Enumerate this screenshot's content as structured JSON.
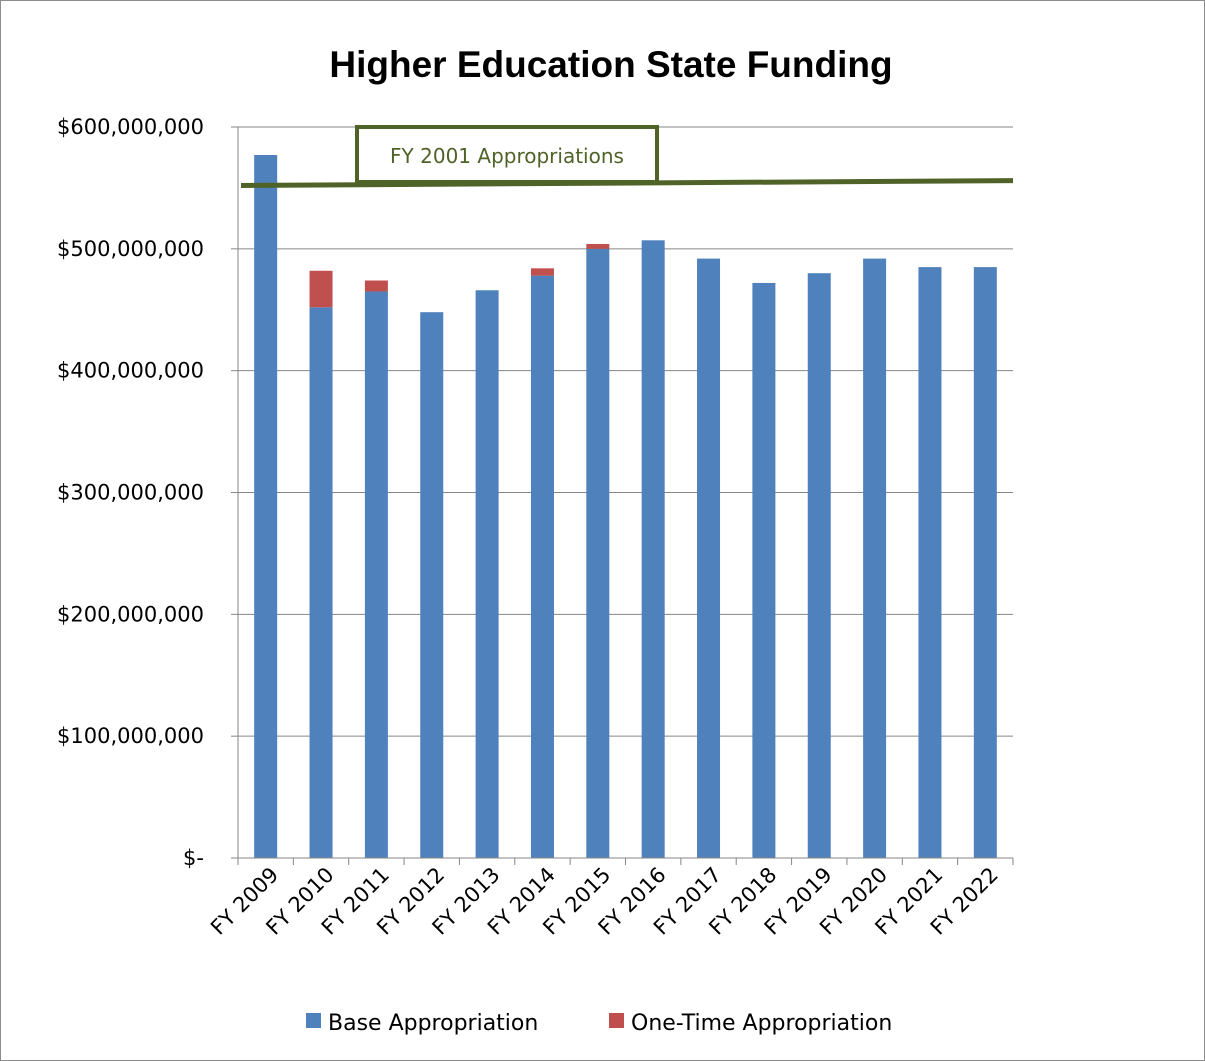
{
  "chart_data": {
    "type": "bar",
    "stacked": true,
    "title": "Higher Education State Funding",
    "xlabel": "",
    "ylabel": "",
    "categories": [
      "FY 2009",
      "FY 2010",
      "FY 2011",
      "FY 2012",
      "FY 2013",
      "FY 2014",
      "FY 2015",
      "FY 2016",
      "FY 2017",
      "FY 2018",
      "FY 2019",
      "FY 2020",
      "FY 2021",
      "FY 2022"
    ],
    "series": [
      {
        "name": "Base Appropriation",
        "color": "#4f81bd",
        "values": [
          577000000,
          452000000,
          465000000,
          448000000,
          466000000,
          478000000,
          500000000,
          507000000,
          492000000,
          472000000,
          480000000,
          492000000,
          485000000,
          485000000
        ]
      },
      {
        "name": "One-Time Appropriation",
        "color": "#c0504d",
        "values": [
          0,
          30000000,
          9000000,
          0,
          0,
          6000000,
          4000000,
          0,
          0,
          0,
          0,
          0,
          0,
          0
        ]
      }
    ],
    "ylim": [
      0,
      600000000
    ],
    "yticks": [
      0,
      100000000,
      200000000,
      300000000,
      400000000,
      500000000,
      600000000
    ],
    "ytick_labels": [
      "$-",
      "$100,000,000",
      "$200,000,000",
      "$300,000,000",
      "$400,000,000",
      "$500,000,000",
      "$600,000,000"
    ],
    "grid": true,
    "legend_position": "bottom",
    "reference_line": {
      "label": "FY 2001 Appropriations",
      "color": "#4f6228",
      "value_start": 552000000,
      "value_end": 556000000
    }
  }
}
